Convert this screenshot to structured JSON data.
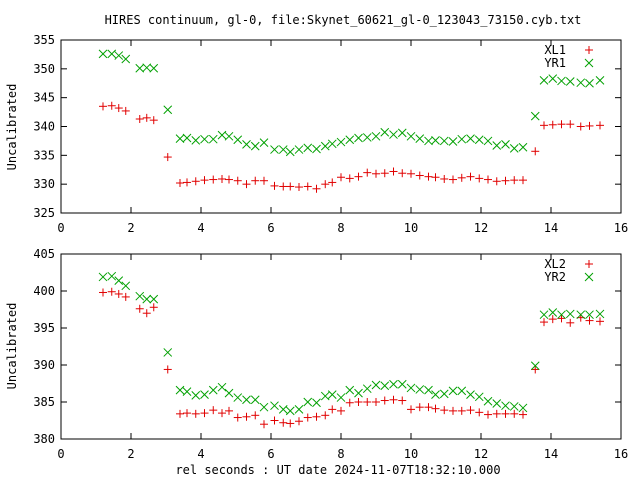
{
  "title": "HIRES continuum, gl-0, file:Skynet_60621_gl-0_123043_73150.cyb.txt",
  "xlabel": "rel seconds : UT date 2024-11-07T18:32:10.000",
  "colors": {
    "red": "#e00000",
    "green": "#00a000"
  },
  "chart_data": [
    {
      "type": "scatter",
      "ylabel": "Uncalibrated",
      "xlim": [
        0,
        16
      ],
      "ylim": [
        325,
        355
      ],
      "xticks": [
        0,
        2,
        4,
        6,
        8,
        10,
        12,
        14,
        16
      ],
      "yticks": [
        325,
        330,
        335,
        340,
        345,
        350,
        355
      ],
      "legend_position": "top-right",
      "series": [
        {
          "name": "XL1",
          "marker": "plus",
          "color": "#e00000",
          "x": [
            1.2,
            1.45,
            1.65,
            1.85,
            2.25,
            2.45,
            2.65,
            3.05,
            3.4,
            3.6,
            3.85,
            4.1,
            4.35,
            4.6,
            4.8,
            5.05,
            5.3,
            5.55,
            5.8,
            6.1,
            6.35,
            6.55,
            6.8,
            7.05,
            7.3,
            7.55,
            7.75,
            8.0,
            8.25,
            8.5,
            8.75,
            9.0,
            9.25,
            9.5,
            9.75,
            10.0,
            10.25,
            10.5,
            10.7,
            10.95,
            11.2,
            11.45,
            11.7,
            11.95,
            12.2,
            12.45,
            12.7,
            12.95,
            13.2,
            13.55,
            13.8,
            14.05,
            14.3,
            14.55,
            14.85,
            15.1,
            15.4
          ],
          "y": [
            343.5,
            343.6,
            343.2,
            342.7,
            341.3,
            341.5,
            341.1,
            334.7,
            330.2,
            330.3,
            330.5,
            330.7,
            330.8,
            330.9,
            330.8,
            330.6,
            330.0,
            330.6,
            330.6,
            329.7,
            329.6,
            329.6,
            329.5,
            329.6,
            329.2,
            330.0,
            330.3,
            331.2,
            331.0,
            331.3,
            332.0,
            331.8,
            331.9,
            332.2,
            331.9,
            331.8,
            331.5,
            331.3,
            331.2,
            330.9,
            330.8,
            331.1,
            331.3,
            331.0,
            330.8,
            330.5,
            330.6,
            330.7,
            330.7,
            335.7,
            340.2,
            340.3,
            340.4,
            340.4,
            340.0,
            340.1,
            340.2
          ]
        },
        {
          "name": "YR1",
          "marker": "cross",
          "color": "#00a000",
          "x": [
            1.2,
            1.45,
            1.65,
            1.85,
            2.25,
            2.45,
            2.65,
            3.05,
            3.4,
            3.6,
            3.85,
            4.1,
            4.35,
            4.6,
            4.8,
            5.05,
            5.3,
            5.55,
            5.8,
            6.1,
            6.35,
            6.55,
            6.8,
            7.05,
            7.3,
            7.55,
            7.75,
            8.0,
            8.25,
            8.5,
            8.75,
            9.0,
            9.25,
            9.5,
            9.75,
            10.0,
            10.25,
            10.5,
            10.7,
            10.95,
            11.2,
            11.45,
            11.7,
            11.95,
            12.2,
            12.45,
            12.7,
            12.95,
            13.2,
            13.55,
            13.8,
            14.05,
            14.3,
            14.55,
            14.85,
            15.1,
            15.4
          ],
          "y": [
            352.6,
            352.6,
            352.3,
            351.7,
            350.1,
            350.2,
            350.1,
            342.9,
            337.9,
            338.0,
            337.6,
            337.8,
            337.8,
            338.5,
            338.3,
            337.7,
            336.9,
            336.6,
            337.2,
            336.0,
            336.0,
            335.6,
            336.0,
            336.3,
            336.1,
            336.6,
            337.0,
            337.3,
            337.7,
            338.0,
            338.1,
            338.3,
            339.0,
            338.6,
            338.9,
            338.3,
            337.9,
            337.5,
            337.6,
            337.5,
            337.4,
            337.8,
            337.9,
            337.7,
            337.5,
            336.7,
            336.9,
            336.2,
            336.4,
            341.8,
            348.0,
            348.3,
            347.9,
            347.8,
            347.6,
            347.5,
            348.0
          ]
        }
      ]
    },
    {
      "type": "scatter",
      "ylabel": "Uncalibrated",
      "xlim": [
        0,
        16
      ],
      "ylim": [
        380,
        405
      ],
      "xticks": [
        0,
        2,
        4,
        6,
        8,
        10,
        12,
        14,
        16
      ],
      "yticks": [
        380,
        385,
        390,
        395,
        400,
        405
      ],
      "legend_position": "top-right",
      "series": [
        {
          "name": "XL2",
          "marker": "plus",
          "color": "#e00000",
          "x": [
            1.2,
            1.45,
            1.65,
            1.85,
            2.25,
            2.45,
            2.65,
            3.05,
            3.4,
            3.6,
            3.85,
            4.1,
            4.35,
            4.6,
            4.8,
            5.05,
            5.3,
            5.55,
            5.8,
            6.1,
            6.35,
            6.55,
            6.8,
            7.05,
            7.3,
            7.55,
            7.75,
            8.0,
            8.25,
            8.5,
            8.75,
            9.0,
            9.25,
            9.5,
            9.75,
            10.0,
            10.25,
            10.5,
            10.7,
            10.95,
            11.2,
            11.45,
            11.7,
            11.95,
            12.2,
            12.45,
            12.7,
            12.95,
            13.2,
            13.55,
            13.8,
            14.05,
            14.3,
            14.55,
            14.85,
            15.1,
            15.4
          ],
          "y": [
            399.8,
            399.9,
            399.6,
            399.2,
            397.6,
            397.0,
            397.8,
            389.4,
            383.4,
            383.5,
            383.4,
            383.5,
            383.9,
            383.5,
            383.8,
            382.9,
            383.0,
            383.2,
            382.0,
            382.5,
            382.2,
            382.1,
            382.4,
            382.9,
            383.0,
            383.2,
            384.0,
            383.8,
            384.9,
            385.0,
            385.0,
            385.0,
            385.2,
            385.3,
            385.2,
            384.0,
            384.3,
            384.3,
            384.1,
            383.9,
            383.8,
            383.8,
            383.9,
            383.6,
            383.3,
            383.4,
            383.4,
            383.4,
            383.3,
            389.4,
            395.8,
            396.2,
            396.3,
            395.7,
            396.4,
            396.0,
            395.9
          ]
        },
        {
          "name": "YR2",
          "marker": "cross",
          "color": "#00a000",
          "x": [
            1.2,
            1.45,
            1.65,
            1.85,
            2.25,
            2.45,
            2.65,
            3.05,
            3.4,
            3.6,
            3.85,
            4.1,
            4.35,
            4.6,
            4.8,
            5.05,
            5.3,
            5.55,
            5.8,
            6.1,
            6.35,
            6.55,
            6.8,
            7.05,
            7.3,
            7.55,
            7.75,
            8.0,
            8.25,
            8.5,
            8.75,
            9.0,
            9.25,
            9.5,
            9.75,
            10.0,
            10.25,
            10.5,
            10.7,
            10.95,
            11.2,
            11.45,
            11.7,
            11.95,
            12.2,
            12.45,
            12.7,
            12.95,
            13.2,
            13.55,
            13.8,
            14.05,
            14.3,
            14.55,
            14.85,
            15.1,
            15.4
          ],
          "y": [
            401.9,
            402.0,
            401.4,
            400.7,
            399.3,
            398.9,
            398.9,
            391.7,
            386.6,
            386.4,
            385.9,
            386.0,
            386.6,
            387.0,
            386.2,
            385.6,
            385.3,
            385.3,
            384.3,
            384.5,
            384.0,
            383.8,
            384.0,
            385.0,
            384.9,
            385.8,
            386.0,
            385.6,
            386.6,
            386.2,
            386.8,
            387.3,
            387.2,
            387.4,
            387.4,
            386.9,
            386.7,
            386.6,
            386.0,
            386.1,
            386.5,
            386.5,
            386.0,
            385.7,
            385.1,
            384.8,
            384.5,
            384.4,
            384.2,
            389.9,
            396.8,
            397.1,
            396.8,
            396.9,
            396.8,
            396.8,
            396.9
          ]
        }
      ]
    }
  ]
}
